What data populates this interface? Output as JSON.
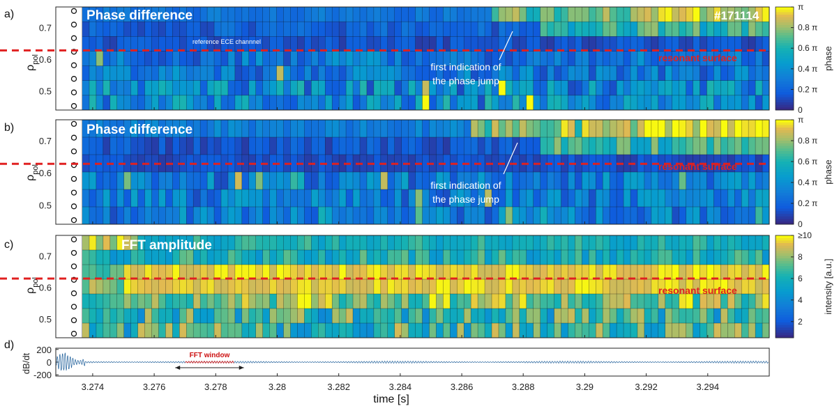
{
  "chart_data": [
    {
      "type": "heatmap",
      "panel_label": "a)",
      "title": "Phase difference",
      "annotation_shot": "#171114",
      "annotation_reference": "reference ECE channnel",
      "annotation_jump": [
        "first indication of",
        "the phase jump"
      ],
      "annotation_surface": "resonant surface",
      "ylabel": "ρ",
      "ylabel_sub": "pol",
      "yticks": [
        "0.7",
        "0.6",
        "0.5"
      ],
      "ytick_values": [
        0.7,
        0.6,
        0.5
      ],
      "ylim": [
        0.44,
        0.765
      ],
      "resonant_rho": 0.628,
      "colorbar_label": "phase",
      "colorbar_ticks": [
        "0",
        "0.2 π",
        "0.4 π",
        "0.6 π",
        "0.8 π",
        "π"
      ],
      "colorbar_range": [
        0,
        1
      ],
      "rows": 7,
      "time_bins": 99,
      "jump_time": 3.2874
    },
    {
      "type": "heatmap",
      "panel_label": "b)",
      "title": "Phase difference",
      "annotation_jump": [
        "first indication of",
        "the phase jump"
      ],
      "annotation_surface": "resonant surface",
      "ylabel": "ρ",
      "ylabel_sub": "pol",
      "yticks": [
        "0.7",
        "0.6",
        "0.5"
      ],
      "ytick_values": [
        0.7,
        0.6,
        0.5
      ],
      "ylim": [
        0.44,
        0.765
      ],
      "resonant_rho": 0.628,
      "colorbar_label": "phase",
      "colorbar_ticks": [
        "0",
        "0.2 π",
        "0.4 π",
        "0.6 π",
        "0.8 π",
        "π"
      ],
      "colorbar_range": [
        0,
        1
      ],
      "rows": 6,
      "time_bins": 99,
      "jump_time": 3.2874
    },
    {
      "type": "heatmap",
      "panel_label": "c)",
      "title": "FFT amplitude",
      "annotation_surface": "resonant surface",
      "ylabel": "ρ",
      "ylabel_sub": "pol",
      "yticks": [
        "0.7",
        "0.6",
        "0.5"
      ],
      "ytick_values": [
        0.7,
        0.6,
        0.5
      ],
      "ylim": [
        0.44,
        0.765
      ],
      "resonant_rho": 0.628,
      "colorbar_label": "intensity [a.u.]",
      "colorbar_ticks": [
        "2",
        "4",
        "6",
        "8",
        "≥10"
      ],
      "colorbar_range": [
        0.5,
        10
      ],
      "rows": 7,
      "time_bins": 99
    },
    {
      "type": "line",
      "panel_label": "d)",
      "ylabel": "dB/dt",
      "yticks": [
        "200",
        "0",
        "-200"
      ],
      "ytick_values": [
        200,
        0,
        -200
      ],
      "ylim": [
        -220,
        220
      ],
      "fft_window_label": "FFT window",
      "fft_window": [
        3.277,
        3.2786
      ]
    }
  ],
  "xaxis": {
    "label": "time [s]",
    "ticks": [
      "3.274",
      "3.276",
      "3.278",
      "3.28",
      "3.282",
      "3.284",
      "3.286",
      "3.288",
      "3.29",
      "3.292",
      "3.294"
    ],
    "tick_values": [
      3.274,
      3.276,
      3.278,
      3.28,
      3.282,
      3.284,
      3.286,
      3.288,
      3.29,
      3.292,
      3.294
    ],
    "xlim": [
      3.2728,
      3.296
    ]
  },
  "colors": {
    "resonant_line": "#e02020",
    "fft_window": "#cc1010",
    "signal": "#1f5f9a",
    "grid": "#222222"
  }
}
